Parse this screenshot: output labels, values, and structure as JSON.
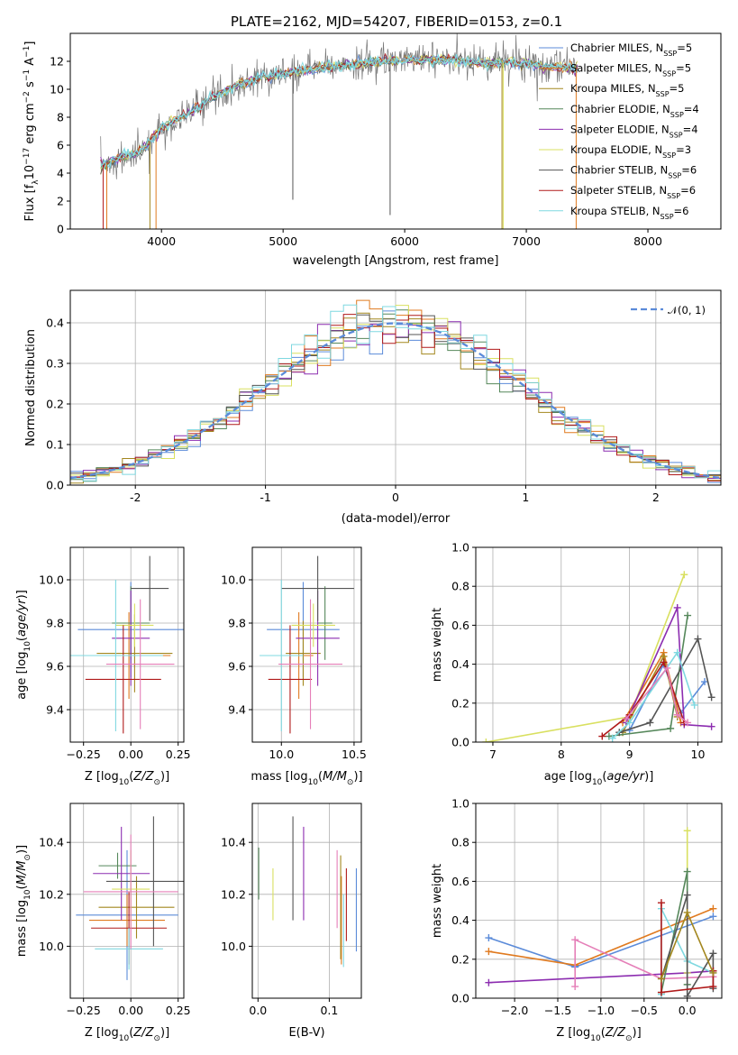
{
  "title": "PLATE=2162, MJD=54207, FIBERID=0153, z=0.1",
  "colors": {
    "Chabrier MILES": "#5b8bd9",
    "Salpeter MILES": "#e07a1f",
    "Kroupa MILES": "#a3871f",
    "Chabrier ELODIE": "#55875a",
    "Salpeter ELODIE": "#8c2db0",
    "Kroupa ELODIE": "#d9e060",
    "Chabrier STELIB": "#555555",
    "Salpeter STELIB": "#b01a1a",
    "Kroupa STELIB": "#7fd8e0",
    "Pink": "#e57fb8"
  },
  "chart_data": [
    {
      "id": "spectrum",
      "type": "line",
      "xlabel": "wavelength [Angstrom, rest frame]",
      "ylabel": "Flux [f_λ 10^-17 erg cm^-2 s^-1 A^-1]",
      "xlim": [
        3250,
        8600
      ],
      "ylim": [
        0,
        14
      ],
      "xticks": [
        4000,
        5000,
        6000,
        7000,
        8000
      ],
      "yticks": [
        0,
        2,
        4,
        6,
        8,
        10,
        12
      ],
      "legend_position": "top-right",
      "legend": [
        {
          "name": "Chabrier MILES, N",
          "sub": "SSP",
          "val": "=5",
          "color": "#5b8bd9"
        },
        {
          "name": "Salpeter MILES, N",
          "sub": "SSP",
          "val": "=5",
          "color": "#e07a1f"
        },
        {
          "name": "Kroupa MILES, N",
          "sub": "SSP",
          "val": "=5",
          "color": "#a3871f"
        },
        {
          "name": "Chabrier ELODIE, N",
          "sub": "SSP",
          "val": "=4",
          "color": "#55875a"
        },
        {
          "name": "Salpeter ELODIE, N",
          "sub": "SSP",
          "val": "=4",
          "color": "#8c2db0"
        },
        {
          "name": "Kroupa ELODIE, N",
          "sub": "SSP",
          "val": "=3",
          "color": "#d9e060"
        },
        {
          "name": "Chabrier STELIB, N",
          "sub": "SSP",
          "val": "=6",
          "color": "#555555"
        },
        {
          "name": "Salpeter STELIB, N",
          "sub": "SSP",
          "val": "=6",
          "color": "#b01a1a"
        },
        {
          "name": "Kroupa STELIB, N",
          "sub": "SSP",
          "val": "=6",
          "color": "#7fd8e0"
        }
      ],
      "continuum": {
        "x": [
          3500,
          3600,
          3700,
          3800,
          3900,
          4000,
          4100,
          4200,
          4300,
          4400,
          4500,
          4600,
          4700,
          4800,
          5000,
          5200,
          5400,
          5600,
          5800,
          6000,
          6200,
          6400,
          6600,
          6800,
          7000,
          7200,
          7400
        ],
        "y": [
          4.5,
          4.9,
          5.3,
          5.4,
          6.2,
          7.2,
          7.7,
          8.2,
          8.7,
          9.3,
          9.8,
          10.2,
          10.5,
          10.8,
          11.1,
          11.4,
          11.6,
          11.8,
          12.0,
          12.1,
          12.1,
          12.1,
          11.9,
          11.9,
          11.8,
          11.6,
          11.5
        ]
      },
      "spikes": [
        {
          "x": 3520,
          "y": 0,
          "color": "#b01a1a"
        },
        {
          "x": 3550,
          "y": 0,
          "color": "#e07a1f"
        },
        {
          "x": 3905,
          "y": 0,
          "color": "#a3871f"
        },
        {
          "x": 3955,
          "y": 0,
          "color": "#e07a1f"
        },
        {
          "x": 5080,
          "y": 2.1,
          "color": "#555555"
        },
        {
          "x": 5880,
          "y": 1.0,
          "color": "#555555"
        },
        {
          "x": 6800,
          "y": 0,
          "color": "#a3871f"
        },
        {
          "x": 6810,
          "y": 0,
          "color": "#d9e060"
        },
        {
          "x": 7410,
          "y": 0,
          "color": "#e07a1f"
        }
      ]
    },
    {
      "id": "residuals",
      "type": "histogram",
      "xlabel": "(data-model)/error",
      "ylabel": "Normed distribution",
      "xlim": [
        -2.5,
        2.5
      ],
      "ylim": [
        0,
        0.48
      ],
      "xticks": [
        -2,
        -1,
        0,
        1,
        2
      ],
      "yticks": [
        0.0,
        0.1,
        0.2,
        0.3,
        0.4
      ],
      "legend_position": "top-right",
      "legend": [
        {
          "name": "𝒩(0, 1)",
          "color": "#5b8bd9"
        }
      ],
      "bin_width": 0.1,
      "series_colors": [
        "#5b8bd9",
        "#e07a1f",
        "#a3871f",
        "#55875a",
        "#8c2db0",
        "#d9e060",
        "#555555",
        "#b01a1a",
        "#7fd8e0"
      ]
    },
    {
      "id": "age-vs-Z",
      "type": "errorbar",
      "xlabel": "Z [log10(Z/Z⊙)]",
      "ylabel": "age [log10(age/yr)]",
      "xlim": [
        -0.32,
        0.28
      ],
      "ylim": [
        9.25,
        10.15
      ],
      "xticks": [
        -0.25,
        0.0,
        0.25
      ],
      "xticklabels": [
        "−0.25",
        "0.00",
        "0.25"
      ],
      "yticks": [
        9.4,
        9.6,
        9.8,
        10.0
      ],
      "points": [
        {
          "x": 0.0,
          "y": 9.77,
          "xerr": 0.28,
          "yerr": 0.22,
          "color": "#5b8bd9"
        },
        {
          "x": -0.01,
          "y": 9.65,
          "xerr": 0.22,
          "yerr": 0.2,
          "color": "#e07a1f"
        },
        {
          "x": 0.02,
          "y": 9.66,
          "xerr": 0.2,
          "yerr": 0.18,
          "color": "#a3871f"
        },
        {
          "x": 0.0,
          "y": 9.8,
          "xerr": 0.1,
          "yerr": 0.17,
          "color": "#55875a"
        },
        {
          "x": 0.0,
          "y": 9.73,
          "xerr": 0.1,
          "yerr": 0.22,
          "color": "#8c2db0"
        },
        {
          "x": 0.02,
          "y": 9.79,
          "xerr": 0.1,
          "yerr": 0.1,
          "color": "#d9e060"
        },
        {
          "x": 0.1,
          "y": 9.96,
          "xerr": 0.1,
          "yerr": 0.15,
          "color": "#555555"
        },
        {
          "x": -0.04,
          "y": 9.54,
          "xerr": 0.2,
          "yerr": 0.25,
          "color": "#b01a1a"
        },
        {
          "x": -0.08,
          "y": 9.65,
          "xerr": 0.25,
          "yerr": 0.35,
          "color": "#7fd8e0"
        },
        {
          "x": 0.05,
          "y": 9.61,
          "xerr": 0.18,
          "yerr": 0.3,
          "color": "#e57fb8"
        }
      ]
    },
    {
      "id": "age-vs-mass",
      "type": "errorbar",
      "xlabel": "mass [log10(M/M⊙)]",
      "ylabel": "",
      "xlim": [
        9.8,
        10.55
      ],
      "ylim": [
        9.25,
        10.15
      ],
      "xticks": [
        10.0,
        10.5
      ],
      "xticklabels": [
        "10.0",
        "10.5"
      ],
      "yticks": [
        9.4,
        9.6,
        9.8,
        10.0
      ],
      "points": [
        {
          "x": 10.15,
          "y": 9.77,
          "xerr": 0.25,
          "yerr": 0.22,
          "color": "#5b8bd9"
        },
        {
          "x": 10.12,
          "y": 9.65,
          "xerr": 0.1,
          "yerr": 0.2,
          "color": "#e07a1f"
        },
        {
          "x": 10.15,
          "y": 9.66,
          "xerr": 0.12,
          "yerr": 0.15,
          "color": "#a3871f"
        },
        {
          "x": 10.3,
          "y": 9.8,
          "xerr": 0.05,
          "yerr": 0.17,
          "color": "#55875a"
        },
        {
          "x": 10.25,
          "y": 9.73,
          "xerr": 0.15,
          "yerr": 0.22,
          "color": "#8c2db0"
        },
        {
          "x": 10.22,
          "y": 9.79,
          "xerr": 0.15,
          "yerr": 0.1,
          "color": "#d9e060"
        },
        {
          "x": 10.25,
          "y": 9.96,
          "xerr": 0.25,
          "yerr": 0.15,
          "color": "#555555"
        },
        {
          "x": 10.06,
          "y": 9.54,
          "xerr": 0.15,
          "yerr": 0.25,
          "color": "#b01a1a"
        },
        {
          "x": 10.0,
          "y": 9.65,
          "xerr": 0.15,
          "yerr": 0.35,
          "color": "#7fd8e0"
        },
        {
          "x": 10.2,
          "y": 9.61,
          "xerr": 0.22,
          "yerr": 0.3,
          "color": "#e57fb8"
        }
      ]
    },
    {
      "id": "weight-vs-age",
      "type": "line",
      "xlabel": "age [log10(age/yr)]",
      "ylabel": "mass weight",
      "xlim": [
        6.75,
        10.35
      ],
      "ylim": [
        0,
        1.0
      ],
      "xticks": [
        7,
        8,
        9,
        10
      ],
      "yticks": [
        0.0,
        0.2,
        0.4,
        0.6,
        0.8,
        1.0
      ],
      "series": [
        {
          "color": "#d9e060",
          "x": [
            6.9,
            9.0,
            9.8
          ],
          "y": [
            0.0,
            0.13,
            0.86
          ]
        },
        {
          "color": "#5b8bd9",
          "x": [
            9.0,
            9.5,
            9.75,
            10.1
          ],
          "y": [
            0.06,
            0.4,
            0.15,
            0.31
          ]
        },
        {
          "color": "#e07a1f",
          "x": [
            8.9,
            9.5,
            9.75
          ],
          "y": [
            0.1,
            0.46,
            0.1
          ]
        },
        {
          "color": "#a3871f",
          "x": [
            8.9,
            9.5,
            9.7
          ],
          "y": [
            0.05,
            0.44,
            0.13
          ]
        },
        {
          "color": "#55875a",
          "x": [
            8.7,
            9.6,
            9.85
          ],
          "y": [
            0.03,
            0.07,
            0.65
          ]
        },
        {
          "color": "#8c2db0",
          "x": [
            8.95,
            9.7,
            9.8,
            10.2
          ],
          "y": [
            0.1,
            0.69,
            0.09,
            0.08
          ]
        },
        {
          "color": "#555555",
          "x": [
            8.85,
            9.3,
            10.0,
            10.2
          ],
          "y": [
            0.05,
            0.1,
            0.53,
            0.23
          ]
        },
        {
          "color": "#b01a1a",
          "x": [
            8.6,
            9.0,
            9.5,
            9.8
          ],
          "y": [
            0.03,
            0.14,
            0.41,
            0.1
          ]
        },
        {
          "color": "#7fd8e0",
          "x": [
            8.75,
            9.0,
            9.7,
            9.95
          ],
          "y": [
            0.02,
            0.1,
            0.46,
            0.19
          ]
        },
        {
          "color": "#e57fb8",
          "x": [
            8.95,
            9.55,
            9.7,
            9.85
          ],
          "y": [
            0.12,
            0.38,
            0.14,
            0.1
          ]
        }
      ]
    },
    {
      "id": "mass-vs-Z",
      "type": "errorbar",
      "xlabel": "Z [log10(Z/Z⊙)]",
      "ylabel": "mass [log10(M/M⊙)]",
      "xlim": [
        -0.32,
        0.28
      ],
      "ylim": [
        9.8,
        10.55
      ],
      "xticks": [
        -0.25,
        0.0,
        0.25
      ],
      "xticklabels": [
        "−0.25",
        "0.00",
        "0.25"
      ],
      "yticks": [
        10.0,
        10.2,
        10.4
      ],
      "points": [
        {
          "x": -0.02,
          "y": 10.12,
          "xerr": 0.27,
          "yerr": 0.25,
          "color": "#5b8bd9"
        },
        {
          "x": -0.02,
          "y": 10.1,
          "xerr": 0.2,
          "yerr": 0.1,
          "color": "#e07a1f"
        },
        {
          "x": 0.03,
          "y": 10.15,
          "xerr": 0.2,
          "yerr": 0.12,
          "color": "#a3871f"
        },
        {
          "x": -0.07,
          "y": 10.31,
          "xerr": 0.1,
          "yerr": 0.05,
          "color": "#55875a"
        },
        {
          "x": -0.05,
          "y": 10.28,
          "xerr": 0.15,
          "yerr": 0.18,
          "color": "#8c2db0"
        },
        {
          "x": 0.0,
          "y": 10.22,
          "xerr": 0.1,
          "yerr": 0.15,
          "color": "#d9e060"
        },
        {
          "x": 0.12,
          "y": 10.25,
          "xerr": 0.25,
          "yerr": 0.25,
          "color": "#555555"
        },
        {
          "x": -0.01,
          "y": 10.07,
          "xerr": 0.2,
          "yerr": 0.14,
          "color": "#b01a1a"
        },
        {
          "x": -0.01,
          "y": 9.99,
          "xerr": 0.18,
          "yerr": 0.08,
          "color": "#7fd8e0"
        },
        {
          "x": 0.0,
          "y": 10.21,
          "xerr": 0.25,
          "yerr": 0.22,
          "color": "#e57fb8"
        }
      ]
    },
    {
      "id": "mass-vs-EBV",
      "type": "errorbar",
      "xlabel": "E(B-V)",
      "ylabel": "",
      "xlim": [
        -0.008,
        0.145
      ],
      "ylim": [
        9.8,
        10.55
      ],
      "xticks": [
        0.0,
        0.1
      ],
      "xticklabels": [
        "0.0",
        "0.1"
      ],
      "yticks": [
        10.0,
        10.2,
        10.4
      ],
      "points": [
        {
          "x": 0.138,
          "y": 10.14,
          "xerr": 0,
          "yerr": 0.16,
          "color": "#5b8bd9"
        },
        {
          "x": 0.117,
          "y": 10.1,
          "xerr": 0,
          "yerr": 0.17,
          "color": "#e07a1f"
        },
        {
          "x": 0.116,
          "y": 10.15,
          "xerr": 0,
          "yerr": 0.2,
          "color": "#a3871f"
        },
        {
          "x": 0.001,
          "y": 10.28,
          "xerr": 0,
          "yerr": 0.1,
          "color": "#55875a"
        },
        {
          "x": 0.064,
          "y": 10.28,
          "xerr": 0,
          "yerr": 0.18,
          "color": "#8c2db0"
        },
        {
          "x": 0.021,
          "y": 10.2,
          "xerr": 0,
          "yerr": 0.1,
          "color": "#d9e060"
        },
        {
          "x": 0.049,
          "y": 10.3,
          "xerr": 0,
          "yerr": 0.2,
          "color": "#555555"
        },
        {
          "x": 0.124,
          "y": 10.16,
          "xerr": 0,
          "yerr": 0.14,
          "color": "#b01a1a"
        },
        {
          "x": 0.12,
          "y": 10.06,
          "xerr": 0,
          "yerr": 0.14,
          "color": "#7fd8e0"
        },
        {
          "x": 0.111,
          "y": 10.22,
          "xerr": 0,
          "yerr": 0.15,
          "color": "#e57fb8"
        }
      ]
    },
    {
      "id": "weight-vs-Z",
      "type": "line",
      "xlabel": "Z [log10(Z/Z⊙)]",
      "ylabel": "mass weight",
      "xlim": [
        -2.45,
        0.4
      ],
      "ylim": [
        0,
        1.0
      ],
      "xticks": [
        -2.0,
        -1.5,
        -1.0,
        -0.5,
        0.0
      ],
      "xticklabels": [
        "−2.0",
        "−1.5",
        "−1.0",
        "−0.5",
        "0.0"
      ],
      "yticks": [
        0.0,
        0.2,
        0.4,
        0.6,
        0.8,
        1.0
      ],
      "series": [
        {
          "color": "#5b8bd9",
          "x": [
            -2.3,
            -1.3,
            0.3
          ],
          "y": [
            0.31,
            0.16,
            0.42
          ]
        },
        {
          "color": "#e07a1f",
          "x": [
            -2.3,
            -1.3,
            0.3
          ],
          "y": [
            0.24,
            0.17,
            0.46
          ]
        },
        {
          "color": "#8c2db0",
          "x": [
            -2.3,
            0.0,
            0.3
          ],
          "y": [
            0.08,
            0.13,
            0.14
          ]
        },
        {
          "color": "#e57fb8",
          "x": [
            -1.3,
            -1.3,
            -0.3,
            0.3
          ],
          "y": [
            0.06,
            0.3,
            0.1,
            0.11
          ]
        },
        {
          "color": "#7fd8e0",
          "x": [
            -0.3,
            -0.3,
            0.0,
            0.3
          ],
          "y": [
            0.02,
            0.46,
            0.19,
            0.13
          ]
        },
        {
          "color": "#d9e060",
          "x": [
            0.0,
            0.0
          ],
          "y": [
            0.13,
            0.86
          ]
        },
        {
          "color": "#55875a",
          "x": [
            -0.3,
            0.0,
            0.0
          ],
          "y": [
            0.03,
            0.65,
            0.07
          ]
        },
        {
          "color": "#555555",
          "x": [
            -0.3,
            0.0,
            0.0,
            0.3,
            0.3
          ],
          "y": [
            0.1,
            0.53,
            0.01,
            0.23,
            0.05
          ]
        },
        {
          "color": "#b01a1a",
          "x": [
            -0.3,
            -0.3,
            0.3,
            0.3
          ],
          "y": [
            0.49,
            0.03,
            0.06,
            0.14
          ]
        },
        {
          "color": "#a3871f",
          "x": [
            -0.3,
            0.0,
            0.3
          ],
          "y": [
            0.1,
            0.44,
            0.13
          ]
        }
      ]
    }
  ]
}
